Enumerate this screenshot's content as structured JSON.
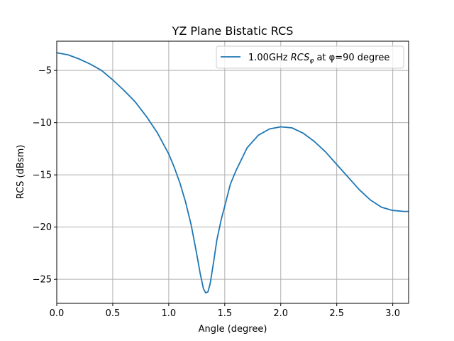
{
  "chart_data": {
    "type": "line",
    "title": "YZ Plane Bistatic RCS",
    "xlabel": "Angle (degree)",
    "ylabel": "RCS (dBsm)",
    "xlim": [
      0,
      3.1416
    ],
    "ylim": [
      -27.3,
      -2.2
    ],
    "xticks": [
      0,
      0.5,
      1.0,
      1.5,
      2.0,
      2.5,
      3.0
    ],
    "xtick_labels": [
      "0.0",
      "0.5",
      "1.0",
      "1.5",
      "2.0",
      "2.5",
      "3.0"
    ],
    "yticks": [
      -5,
      -10,
      -15,
      -20,
      -25
    ],
    "ytick_labels": [
      "−5",
      "−10",
      "−15",
      "−20",
      "−25"
    ],
    "grid": true,
    "legend_position": "top-right",
    "series": [
      {
        "name": "1.00GHz RCSφ at φ=90 degree",
        "legend_prefix": "1.00GHz ",
        "legend_symbol": "RCS",
        "legend_symbol_sub": "φ",
        "legend_suffix": " at φ=90 degree",
        "color": "#1f77b4",
        "x": [
          0.0,
          0.1,
          0.2,
          0.3,
          0.4,
          0.5,
          0.6,
          0.7,
          0.8,
          0.9,
          1.0,
          1.05,
          1.1,
          1.15,
          1.2,
          1.25,
          1.28,
          1.31,
          1.33,
          1.35,
          1.37,
          1.4,
          1.43,
          1.47,
          1.5,
          1.55,
          1.6,
          1.7,
          1.8,
          1.9,
          2.0,
          2.1,
          2.2,
          2.3,
          2.4,
          2.5,
          2.6,
          2.7,
          2.8,
          2.9,
          3.0,
          3.1,
          3.1416
        ],
        "y": [
          -3.3,
          -3.5,
          -3.9,
          -4.4,
          -5.0,
          -5.9,
          -6.9,
          -8.0,
          -9.4,
          -11.0,
          -13.0,
          -14.3,
          -15.8,
          -17.6,
          -19.8,
          -22.6,
          -24.4,
          -25.9,
          -26.3,
          -26.2,
          -25.4,
          -23.4,
          -21.2,
          -19.2,
          -18.0,
          -15.9,
          -14.6,
          -12.4,
          -11.2,
          -10.6,
          -10.4,
          -10.5,
          -11.0,
          -11.8,
          -12.8,
          -14.0,
          -15.2,
          -16.4,
          -17.4,
          -18.1,
          -18.4,
          -18.5,
          -18.5
        ]
      }
    ]
  }
}
